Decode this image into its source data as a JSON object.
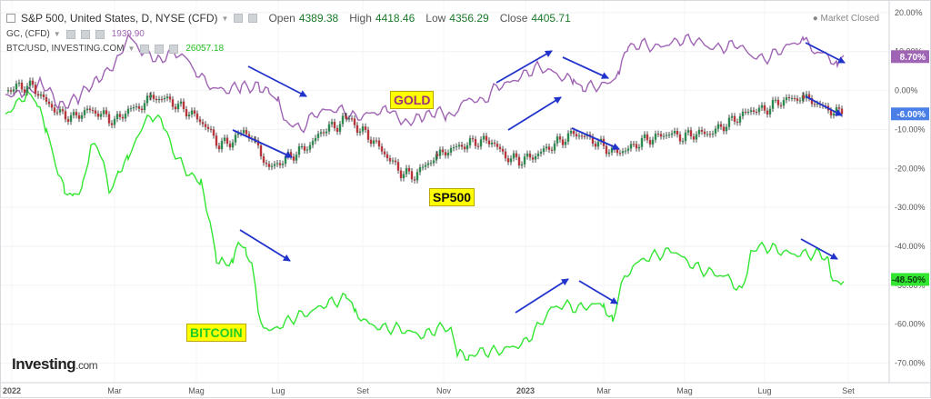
{
  "header": {
    "title": "S&P 500, United States, D, NYSE (CFD)",
    "open_label": "Open",
    "open": "4389.38",
    "high_label": "High",
    "high": "4418.46",
    "low_label": "Low",
    "low": "4356.29",
    "close_label": "Close",
    "close": "4405.71",
    "market_status": "Market Closed",
    "gold_symbol": "GC, (CFD)",
    "gold_value": "1939.90",
    "btc_symbol": "BTC/USD, INVESTING.COM",
    "btc_value": "26057.18"
  },
  "annotations": {
    "gold": "GOLD",
    "sp500": "SP500",
    "bitcoin": "BITCOIN"
  },
  "logo": {
    "name": "Investing",
    "suffix": ".com"
  },
  "colors": {
    "gold": "#a064b4",
    "btc": "#32e632",
    "sp_up": "#2d8a4e",
    "sp_down": "#b8333a",
    "arrow": "#2233cc",
    "sp_badge": "#4a7fe8"
  },
  "chart_data": {
    "type": "line",
    "x_labels": [
      "2022",
      "Mar",
      "Mag",
      "Lug",
      "Set",
      "Nov",
      "2023",
      "Mar",
      "Mag",
      "Lug",
      "Set"
    ],
    "y_ticks": [
      "20.00%",
      "10.00%",
      "0.00%",
      "-10.00%",
      "-20.00%",
      "-30.00%",
      "-40.00%",
      "-50.00%",
      "-60.00%",
      "-70.00%"
    ],
    "ylim": [
      -75,
      23
    ],
    "last_values": {
      "gold": "8.70%",
      "sp500": "-6.00%",
      "bitcoin": "-48.50%"
    },
    "series": [
      {
        "name": "GC, (CFD)",
        "points": [
          [
            0,
            -1
          ],
          [
            20,
            -1
          ],
          [
            40,
            2
          ],
          [
            60,
            -4
          ],
          [
            80,
            -2
          ],
          [
            100,
            3
          ],
          [
            120,
            6
          ],
          [
            135,
            14
          ],
          [
            150,
            10
          ],
          [
            170,
            8
          ],
          [
            185,
            10
          ],
          [
            200,
            8
          ],
          [
            210,
            5
          ],
          [
            225,
            1
          ],
          [
            240,
            0
          ],
          [
            260,
            1
          ],
          [
            280,
            1
          ],
          [
            290,
            -1
          ],
          [
            300,
            -3
          ],
          [
            310,
            -8
          ],
          [
            325,
            -10
          ],
          [
            340,
            -6
          ],
          [
            355,
            -5
          ],
          [
            370,
            -5
          ],
          [
            385,
            -7
          ],
          [
            400,
            -6
          ],
          [
            420,
            -5
          ],
          [
            440,
            -8
          ],
          [
            460,
            -7
          ],
          [
            475,
            -5
          ],
          [
            485,
            -7
          ],
          [
            495,
            -5
          ],
          [
            510,
            -2
          ],
          [
            525,
            -3
          ],
          [
            540,
            1
          ],
          [
            555,
            2
          ],
          [
            570,
            4
          ],
          [
            585,
            6
          ],
          [
            600,
            5
          ],
          [
            615,
            3
          ],
          [
            625,
            3
          ],
          [
            635,
            1
          ],
          [
            650,
            1
          ],
          [
            665,
            2
          ],
          [
            675,
            5
          ],
          [
            685,
            11
          ],
          [
            700,
            12
          ],
          [
            715,
            11
          ],
          [
            730,
            12
          ],
          [
            745,
            13
          ],
          [
            760,
            13
          ],
          [
            775,
            11
          ],
          [
            790,
            11
          ],
          [
            805,
            12
          ],
          [
            820,
            9
          ],
          [
            835,
            8
          ],
          [
            850,
            10
          ],
          [
            865,
            12
          ],
          [
            878,
            13
          ],
          [
            890,
            10
          ],
          [
            905,
            9
          ],
          [
            915,
            6
          ],
          [
            922,
            9
          ]
        ]
      },
      {
        "name": "SP500",
        "points": [
          [
            0,
            0
          ],
          [
            15,
            1
          ],
          [
            30,
            1
          ],
          [
            45,
            -3
          ],
          [
            60,
            -6
          ],
          [
            75,
            -7
          ],
          [
            90,
            -5
          ],
          [
            105,
            -6
          ],
          [
            120,
            -8
          ],
          [
            135,
            -5
          ],
          [
            150,
            -4
          ],
          [
            160,
            -2
          ],
          [
            175,
            -2
          ],
          [
            190,
            -4
          ],
          [
            205,
            -6
          ],
          [
            220,
            -9
          ],
          [
            235,
            -14
          ],
          [
            250,
            -13
          ],
          [
            262,
            -10
          ],
          [
            275,
            -14
          ],
          [
            290,
            -20
          ],
          [
            305,
            -18
          ],
          [
            320,
            -16
          ],
          [
            335,
            -14
          ],
          [
            350,
            -10
          ],
          [
            365,
            -9
          ],
          [
            375,
            -7
          ],
          [
            390,
            -10
          ],
          [
            405,
            -13
          ],
          [
            420,
            -17
          ],
          [
            435,
            -21
          ],
          [
            450,
            -22
          ],
          [
            462,
            -19
          ],
          [
            475,
            -17
          ],
          [
            490,
            -15
          ],
          [
            505,
            -14
          ],
          [
            520,
            -13
          ],
          [
            535,
            -13
          ],
          [
            550,
            -17
          ],
          [
            565,
            -18
          ],
          [
            580,
            -17
          ],
          [
            595,
            -15
          ],
          [
            610,
            -13
          ],
          [
            625,
            -11
          ],
          [
            640,
            -12
          ],
          [
            655,
            -14
          ],
          [
            670,
            -16
          ],
          [
            685,
            -15
          ],
          [
            700,
            -13
          ],
          [
            715,
            -12
          ],
          [
            730,
            -11
          ],
          [
            745,
            -12
          ],
          [
            760,
            -11
          ],
          [
            775,
            -11
          ],
          [
            790,
            -9
          ],
          [
            805,
            -7
          ],
          [
            820,
            -5
          ],
          [
            835,
            -5
          ],
          [
            850,
            -3
          ],
          [
            865,
            -2
          ],
          [
            878,
            -2
          ],
          [
            890,
            -3
          ],
          [
            905,
            -5
          ],
          [
            920,
            -6
          ]
        ]
      },
      {
        "name": "BTC/USD, INVESTING.COM",
        "points": [
          [
            0,
            -6
          ],
          [
            15,
            -3
          ],
          [
            25,
            0
          ],
          [
            35,
            -4
          ],
          [
            45,
            -10
          ],
          [
            55,
            -18
          ],
          [
            65,
            -26
          ],
          [
            75,
            -28
          ],
          [
            85,
            -24
          ],
          [
            95,
            -13
          ],
          [
            105,
            -17
          ],
          [
            115,
            -26
          ],
          [
            125,
            -20
          ],
          [
            135,
            -18
          ],
          [
            150,
            -9
          ],
          [
            165,
            -6
          ],
          [
            175,
            -10
          ],
          [
            190,
            -18
          ],
          [
            205,
            -22
          ],
          [
            215,
            -24
          ],
          [
            225,
            -33
          ],
          [
            232,
            -43
          ],
          [
            240,
            -44
          ],
          [
            250,
            -44
          ],
          [
            258,
            -38
          ],
          [
            265,
            -42
          ],
          [
            272,
            -45
          ],
          [
            278,
            -58
          ],
          [
            290,
            -62
          ],
          [
            305,
            -60
          ],
          [
            320,
            -58
          ],
          [
            335,
            -57
          ],
          [
            350,
            -55
          ],
          [
            365,
            -54
          ],
          [
            375,
            -53
          ],
          [
            385,
            -57
          ],
          [
            400,
            -60
          ],
          [
            415,
            -61
          ],
          [
            430,
            -61
          ],
          [
            445,
            -62
          ],
          [
            460,
            -63
          ],
          [
            475,
            -61
          ],
          [
            490,
            -61
          ],
          [
            497,
            -68
          ],
          [
            510,
            -68
          ],
          [
            525,
            -67
          ],
          [
            540,
            -67
          ],
          [
            555,
            -66
          ],
          [
            570,
            -65
          ],
          [
            585,
            -61
          ],
          [
            600,
            -56
          ],
          [
            615,
            -55
          ],
          [
            630,
            -56
          ],
          [
            645,
            -55
          ],
          [
            658,
            -55
          ],
          [
            668,
            -59
          ],
          [
            678,
            -50
          ],
          [
            690,
            -45
          ],
          [
            705,
            -43
          ],
          [
            720,
            -42
          ],
          [
            735,
            -41
          ],
          [
            750,
            -44
          ],
          [
            765,
            -46
          ],
          [
            780,
            -47
          ],
          [
            795,
            -48
          ],
          [
            810,
            -52
          ],
          [
            820,
            -41
          ],
          [
            835,
            -40
          ],
          [
            850,
            -41
          ],
          [
            865,
            -42
          ],
          [
            880,
            -42
          ],
          [
            895,
            -42
          ],
          [
            905,
            -43
          ],
          [
            910,
            -49
          ],
          [
            922,
            -49
          ]
        ]
      }
    ]
  }
}
